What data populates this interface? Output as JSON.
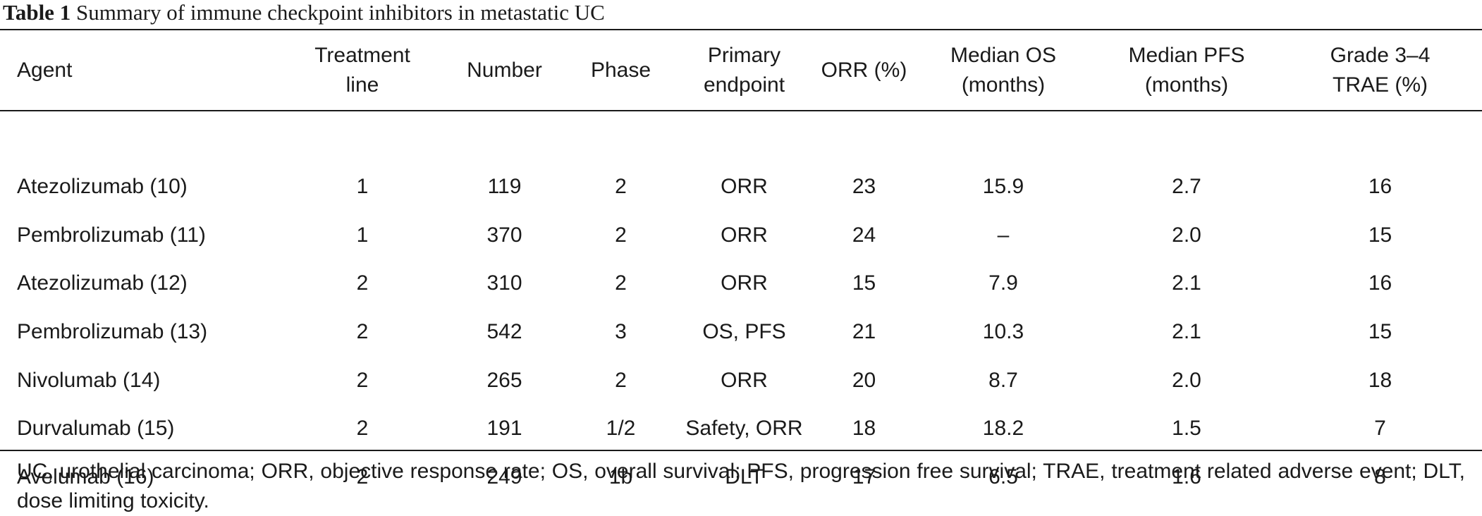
{
  "caption": {
    "label": "Table 1",
    "title": "Summary of immune checkpoint inhibitors in metastatic UC"
  },
  "table": {
    "headers": [
      [
        "Agent"
      ],
      [
        "Treatment",
        "line"
      ],
      [
        "Number"
      ],
      [
        "Phase"
      ],
      [
        "Primary",
        "endpoint"
      ],
      [
        "ORR (%)"
      ],
      [
        "Median OS",
        "(months)"
      ],
      [
        "Median PFS",
        "(months)"
      ],
      [
        "Grade 3–4",
        "TRAE (%)"
      ]
    ],
    "rows": [
      [
        "Atezolizumab (10)",
        "1",
        "119",
        "2",
        "ORR",
        "23",
        "15.9",
        "2.7",
        "16"
      ],
      [
        "Pembrolizumab (11)",
        "1",
        "370",
        "2",
        "ORR",
        "24",
        "–",
        "2.0",
        "15"
      ],
      [
        "Atezolizumab (12)",
        "2",
        "310",
        "2",
        "ORR",
        "15",
        "7.9",
        "2.1",
        "16"
      ],
      [
        "Pembrolizumab (13)",
        "2",
        "542",
        "3",
        "OS, PFS",
        "21",
        "10.3",
        "2.1",
        "15"
      ],
      [
        "Nivolumab (14)",
        "2",
        "265",
        "2",
        "ORR",
        "20",
        "8.7",
        "2.0",
        "18"
      ],
      [
        "Durvalumab (15)",
        "2",
        "191",
        "1/2",
        "Safety, ORR",
        "18",
        "18.2",
        "1.5",
        "7"
      ],
      [
        "Avelumab (16)",
        "2",
        "249",
        "1b",
        "DLT",
        "17",
        "6.5",
        "1.6",
        "8"
      ]
    ]
  },
  "footnote": "UC, urothelial carcinoma; ORR, objective response rate; OS, overall survival; PFS, progression free survival; TRAE, treatment related adverse event; DLT, dose limiting toxicity."
}
